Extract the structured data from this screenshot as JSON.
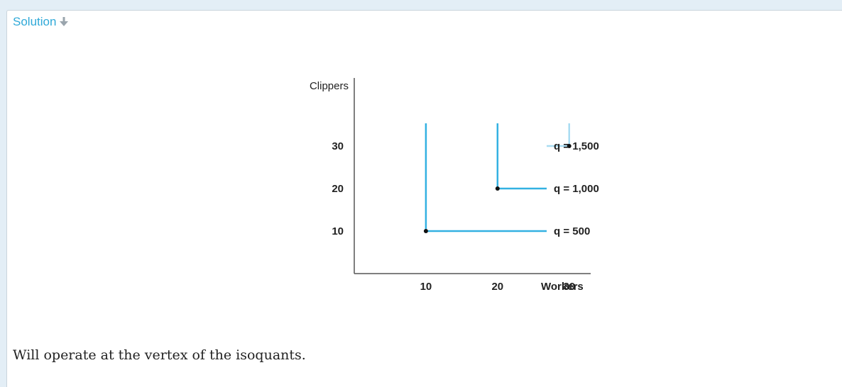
{
  "solution": {
    "label": "Solution",
    "icon": "arrow-down-icon",
    "accent": "#2fa9d8"
  },
  "chart_data": {
    "type": "line",
    "xlabel": "Workers",
    "ylabel": "Clippers",
    "xlim": [
      0,
      33
    ],
    "ylim": [
      0,
      46
    ],
    "xticks": [
      10,
      20,
      30
    ],
    "yticks": [
      10,
      20,
      30
    ],
    "grid": false,
    "series": [
      {
        "name": "q = 500",
        "vertex": [
          10,
          10
        ],
        "color": "#33b1e2"
      },
      {
        "name": "q = 1,000",
        "vertex": [
          20,
          20
        ],
        "color": "#33b1e2"
      },
      {
        "name": "q = 1,500",
        "vertex": [
          30,
          30
        ],
        "color": "#a8dcf2"
      }
    ]
  },
  "answer_text": "Will operate at the vertex of the isoquants."
}
